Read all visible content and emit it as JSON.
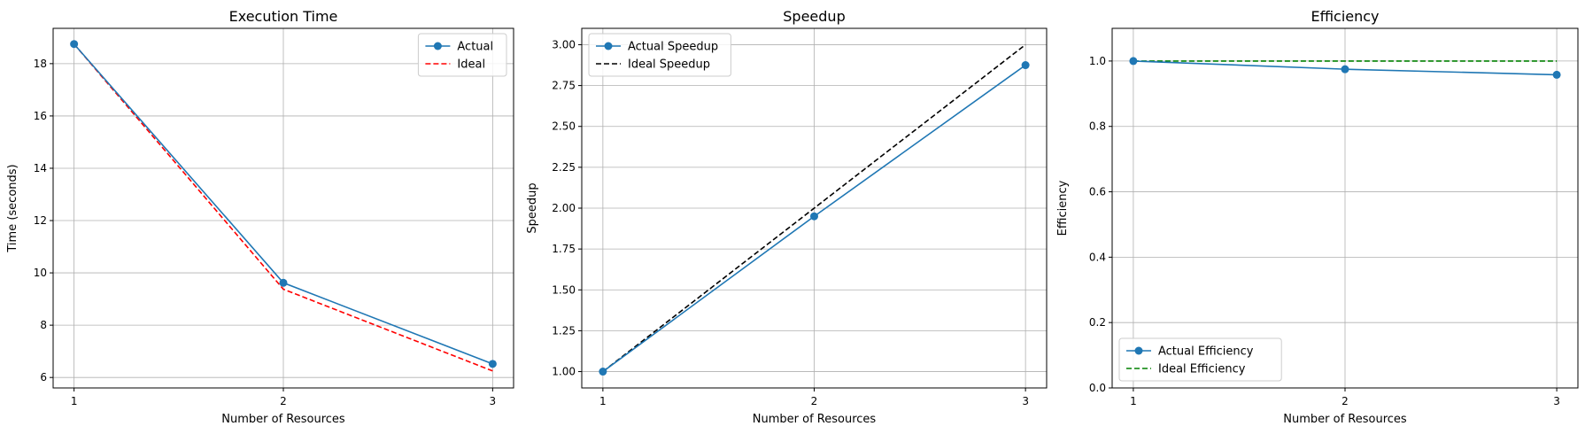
{
  "chart_data": [
    {
      "type": "line",
      "title": "Execution Time",
      "xlabel": "Number of Resources",
      "ylabel": "Time (seconds)",
      "x": [
        1,
        2,
        3
      ],
      "xticks": [
        1,
        2,
        3
      ],
      "xlim": [
        0.9,
        3.1
      ],
      "ylim": [
        5.6,
        19.35
      ],
      "yticks": [
        6,
        8,
        10,
        12,
        14,
        16,
        18
      ],
      "tick_decimals": 0,
      "grid": true,
      "legend": "upper right",
      "series": [
        {
          "name": "Actual",
          "values": [
            18.75,
            9.62,
            6.52
          ],
          "color": "#1f77b4",
          "style": "solid",
          "marker": true
        },
        {
          "name": "Ideal",
          "values": [
            18.75,
            9.375,
            6.25
          ],
          "color": "#ff0000",
          "style": "dashed",
          "marker": false
        }
      ]
    },
    {
      "type": "line",
      "title": "Speedup",
      "xlabel": "Number of Resources",
      "ylabel": "Speedup",
      "x": [
        1,
        2,
        3
      ],
      "xticks": [
        1,
        2,
        3
      ],
      "xlim": [
        0.9,
        3.1
      ],
      "ylim": [
        0.9,
        3.1
      ],
      "yticks": [
        1.0,
        1.25,
        1.5,
        1.75,
        2.0,
        2.25,
        2.5,
        2.75,
        3.0
      ],
      "tick_decimals": 2,
      "grid": true,
      "legend": "upper left",
      "series": [
        {
          "name": "Actual Speedup",
          "values": [
            1.0,
            1.95,
            2.875
          ],
          "color": "#1f77b4",
          "style": "solid",
          "marker": true
        },
        {
          "name": "Ideal Speedup",
          "values": [
            1.0,
            2.0,
            3.0
          ],
          "color": "#000000",
          "style": "dashed",
          "marker": false
        }
      ]
    },
    {
      "type": "line",
      "title": "Efficiency",
      "xlabel": "Number of Resources",
      "ylabel": "Efficiency",
      "x": [
        1,
        2,
        3
      ],
      "xticks": [
        1,
        2,
        3
      ],
      "xlim": [
        0.9,
        3.1
      ],
      "ylim": [
        0.0,
        1.1
      ],
      "yticks": [
        0.0,
        0.2,
        0.4,
        0.6,
        0.8,
        1.0
      ],
      "tick_decimals": 1,
      "grid": true,
      "legend": "lower left",
      "series": [
        {
          "name": "Actual Efficiency",
          "values": [
            1.0,
            0.975,
            0.958
          ],
          "color": "#1f77b4",
          "style": "solid",
          "marker": true
        },
        {
          "name": "Ideal Efficiency",
          "values": [
            1.0,
            1.0,
            1.0
          ],
          "color": "#008000",
          "style": "dashed",
          "marker": false
        }
      ]
    }
  ]
}
